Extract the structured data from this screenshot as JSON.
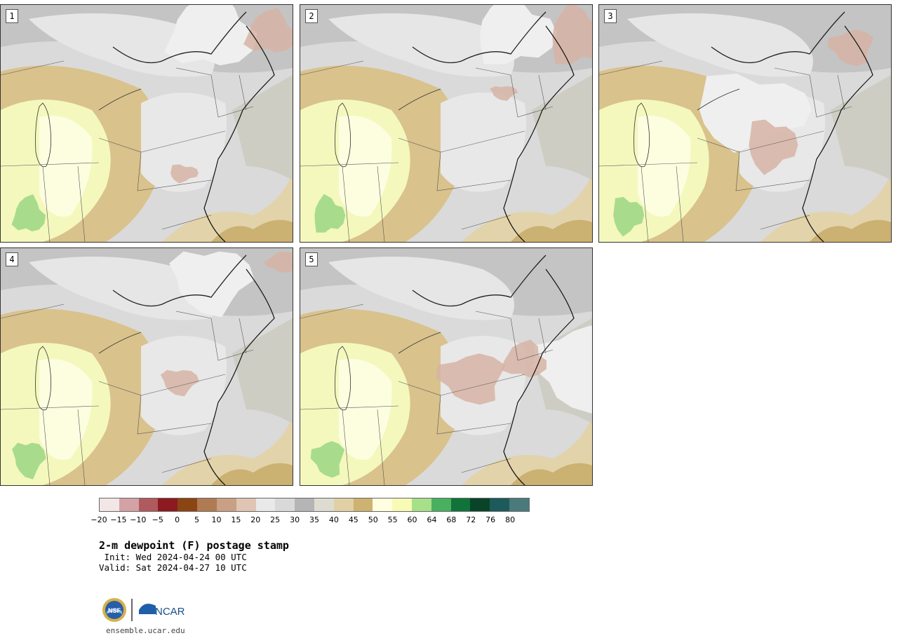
{
  "panels": [
    {
      "label": "1"
    },
    {
      "label": "2"
    },
    {
      "label": "3"
    },
    {
      "label": "4"
    },
    {
      "label": "5"
    }
  ],
  "colorbar": {
    "colors": [
      "#f2e6e6",
      "#d4a1a5",
      "#b05a5e",
      "#8c1a20",
      "#8a4512",
      "#b07a52",
      "#c9a084",
      "#e0c4b4",
      "#e9e9e9",
      "#d9d9d9",
      "#b5b5b5",
      "#dedcd0",
      "#e0d0a4",
      "#cdb272",
      "#ffffe0",
      "#f7fbb4",
      "#a8e08a",
      "#49b060",
      "#10743a",
      "#0a4428",
      "#1d5a5c",
      "#4b7a7c"
    ],
    "tick_labels": [
      "−20",
      "−15",
      "−10",
      "−5",
      "0",
      "5",
      "10",
      "15",
      "20",
      "25",
      "30",
      "35",
      "40",
      "45",
      "50",
      "55",
      "60",
      "64",
      "68",
      "72",
      "76",
      "80"
    ]
  },
  "title": "2-m dewpoint (F) postage stamp",
  "init_text": " Init: Wed 2024-04-24 00 UTC",
  "valid_text": "Valid: Sat 2024-04-27 10 UTC",
  "logo": {
    "org1": "NSF",
    "org2": "NCAR"
  },
  "website": "ensemble.ucar.edu"
}
